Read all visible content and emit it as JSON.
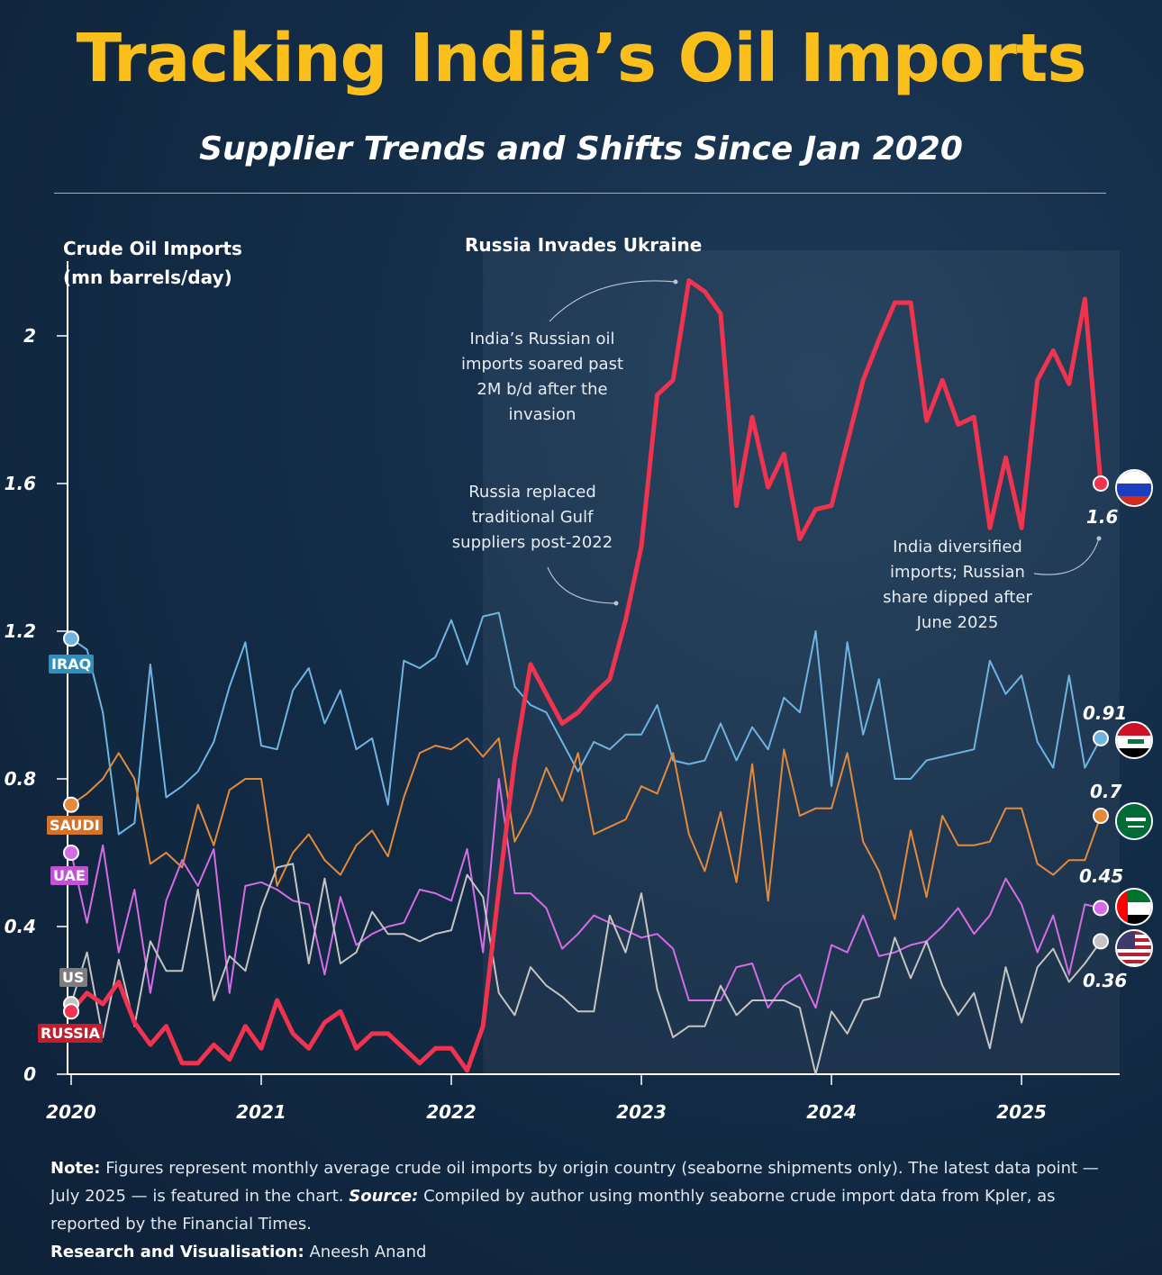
{
  "header": {
    "title": "Tracking India’s Oil Imports",
    "subtitle": "Supplier Trends and Shifts Since Jan 2020"
  },
  "chart_data": {
    "type": "line",
    "ylabel_line1": "Crude Oil Imports",
    "ylabel_line2": "(mn barrels/day)",
    "ylim": [
      0,
      2.2
    ],
    "yticks": [
      "0",
      "0.4",
      "0.8",
      "1.2",
      "1.6",
      "2"
    ],
    "ytick_values": [
      0,
      0.4,
      0.8,
      1.2,
      1.6,
      2
    ],
    "xticks": [
      "2020",
      "2021",
      "2022",
      "2023",
      "2024",
      "2025"
    ],
    "x_start": "Jan 2020",
    "x_end": "Jul 2025",
    "event": {
      "label": "Russia Invades Ukraine",
      "start_month_index": 26
    },
    "series": [
      {
        "name": "IRAQ",
        "color": "#6fb4e0",
        "end_value": "0.91",
        "values": [
          1.18,
          1.15,
          0.98,
          0.65,
          0.68,
          1.11,
          0.75,
          0.78,
          0.82,
          0.9,
          1.05,
          1.17,
          0.89,
          0.88,
          1.04,
          1.1,
          0.95,
          1.04,
          0.88,
          0.91,
          0.73,
          1.12,
          1.1,
          1.13,
          1.23,
          1.11,
          1.24,
          1.25,
          1.05,
          1.0,
          0.98,
          0.9,
          0.82,
          0.9,
          0.88,
          0.92,
          0.92,
          1.0,
          0.85,
          0.84,
          0.85,
          0.95,
          0.85,
          0.94,
          0.88,
          1.02,
          0.98,
          1.2,
          0.78,
          1.17,
          0.92,
          1.07,
          0.8,
          0.8,
          0.85,
          0.86,
          0.87,
          0.88,
          1.12,
          1.03,
          1.08,
          0.9,
          0.83,
          1.08,
          0.83,
          0.91
        ]
      },
      {
        "name": "SAUDI",
        "color": "#e58a3a",
        "end_value": "0.7",
        "values": [
          0.73,
          0.76,
          0.8,
          0.87,
          0.8,
          0.57,
          0.6,
          0.56,
          0.73,
          0.62,
          0.77,
          0.8,
          0.8,
          0.51,
          0.6,
          0.65,
          0.58,
          0.54,
          0.62,
          0.66,
          0.59,
          0.75,
          0.87,
          0.89,
          0.88,
          0.91,
          0.86,
          0.91,
          0.63,
          0.71,
          0.83,
          0.74,
          0.87,
          0.65,
          0.67,
          0.69,
          0.78,
          0.76,
          0.87,
          0.65,
          0.55,
          0.71,
          0.52,
          0.84,
          0.47,
          0.88,
          0.7,
          0.72,
          0.72,
          0.87,
          0.63,
          0.55,
          0.42,
          0.66,
          0.48,
          0.7,
          0.62,
          0.62,
          0.63,
          0.72,
          0.72,
          0.57,
          0.54,
          0.58,
          0.58,
          0.7
        ]
      },
      {
        "name": "UAE",
        "color": "#d66be6",
        "end_value": "0.45",
        "values": [
          0.6,
          0.41,
          0.62,
          0.33,
          0.5,
          0.22,
          0.47,
          0.58,
          0.51,
          0.61,
          0.22,
          0.51,
          0.52,
          0.5,
          0.47,
          0.46,
          0.27,
          0.48,
          0.35,
          0.38,
          0.4,
          0.41,
          0.5,
          0.49,
          0.47,
          0.61,
          0.33,
          0.8,
          0.49,
          0.49,
          0.45,
          0.34,
          0.38,
          0.43,
          0.41,
          0.39,
          0.37,
          0.38,
          0.34,
          0.2,
          0.2,
          0.2,
          0.29,
          0.3,
          0.18,
          0.24,
          0.27,
          0.18,
          0.35,
          0.33,
          0.43,
          0.32,
          0.33,
          0.35,
          0.36,
          0.4,
          0.45,
          0.38,
          0.43,
          0.53,
          0.46,
          0.33,
          0.43,
          0.27,
          0.46,
          0.45
        ]
      },
      {
        "name": "US",
        "color": "#c4c4c4",
        "end_value": "0.36",
        "values": [
          0.19,
          0.33,
          0.1,
          0.31,
          0.13,
          0.36,
          0.28,
          0.28,
          0.5,
          0.2,
          0.32,
          0.28,
          0.45,
          0.56,
          0.57,
          0.3,
          0.53,
          0.3,
          0.33,
          0.44,
          0.38,
          0.38,
          0.36,
          0.38,
          0.39,
          0.54,
          0.48,
          0.22,
          0.16,
          0.29,
          0.24,
          0.21,
          0.17,
          0.17,
          0.43,
          0.33,
          0.49,
          0.23,
          0.1,
          0.13,
          0.13,
          0.24,
          0.16,
          0.2,
          0.2,
          0.2,
          0.18,
          0.0,
          0.17,
          0.11,
          0.2,
          0.21,
          0.37,
          0.26,
          0.36,
          0.24,
          0.16,
          0.22,
          0.07,
          0.29,
          0.14,
          0.29,
          0.34,
          0.25,
          0.3,
          0.36
        ]
      },
      {
        "name": "RUSSIA",
        "color": "#f0334e",
        "end_value": "1.6",
        "values": [
          0.17,
          0.22,
          0.19,
          0.25,
          0.14,
          0.08,
          0.13,
          0.03,
          0.03,
          0.08,
          0.04,
          0.13,
          0.07,
          0.2,
          0.11,
          0.07,
          0.14,
          0.17,
          0.07,
          0.11,
          0.11,
          0.07,
          0.03,
          0.07,
          0.07,
          0.01,
          0.13,
          0.5,
          0.85,
          1.11,
          1.03,
          0.95,
          0.98,
          1.03,
          1.07,
          1.23,
          1.43,
          1.84,
          1.88,
          2.15,
          2.12,
          2.06,
          1.54,
          1.78,
          1.59,
          1.68,
          1.45,
          1.53,
          1.54,
          1.71,
          1.88,
          1.99,
          2.09,
          2.09,
          1.77,
          1.88,
          1.76,
          1.78,
          1.48,
          1.67,
          1.48,
          1.88,
          1.96,
          1.87,
          2.1,
          1.6
        ]
      }
    ],
    "annotations": {
      "soared": "India’s Russian oil imports soared past 2M b/d after the invasion",
      "replaced": "Russia replaced traditional Gulf suppliers post-2022",
      "diversified": "India diversified imports; Russian share dipped after June 2025"
    }
  },
  "footer": {
    "note_label": "Note:",
    "note_text": "Figures represent monthly average crude oil imports by origin country (seaborne shipments only). The latest data point — July 2025 — is featured in the chart.",
    "source_label": "Source:",
    "source_text": "Compiled by author using monthly seaborne crude import data from Kpler, as reported by the Financial Times.",
    "credit_label": "Research and Visualisation:",
    "credit_text": "Aneesh Anand"
  }
}
